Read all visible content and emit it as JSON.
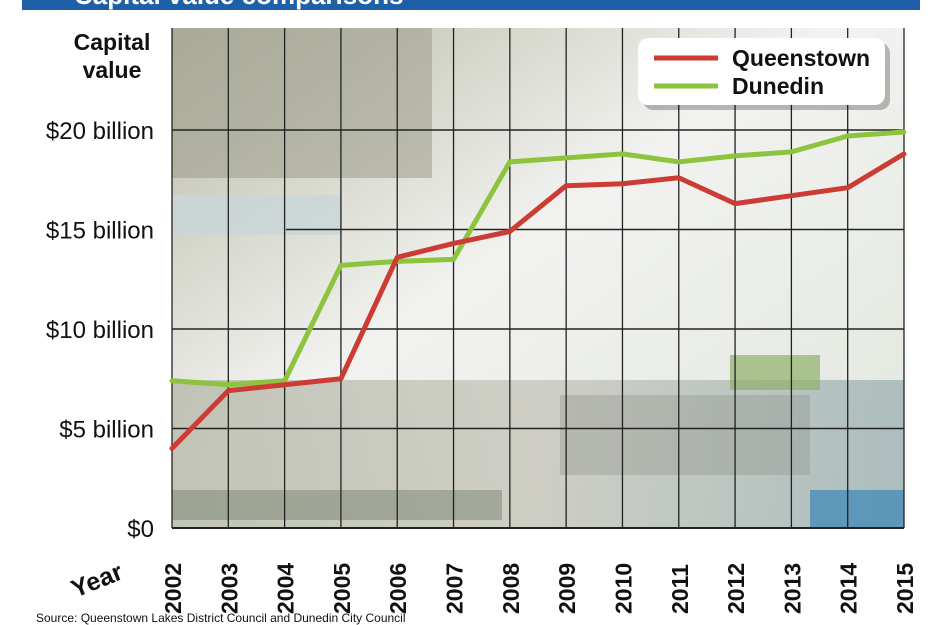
{
  "chart_data": {
    "type": "line",
    "title": "Capital value comparisons",
    "ylabel": "Capital value",
    "xlabel": "Year",
    "categories": [
      "2002",
      "2003",
      "2004",
      "2005",
      "2006",
      "2007",
      "2008",
      "2009",
      "2010",
      "2011",
      "2012",
      "2013",
      "2014",
      "2015"
    ],
    "series": [
      {
        "name": "Queenstown",
        "color": "#cc3b34",
        "values": [
          4.0,
          6.9,
          7.2,
          7.5,
          13.6,
          14.3,
          14.9,
          17.2,
          17.3,
          17.6,
          16.3,
          16.7,
          17.1,
          18.8
        ]
      },
      {
        "name": "Dunedin",
        "color": "#8cc43d",
        "values": [
          7.4,
          7.2,
          7.4,
          13.2,
          13.4,
          13.5,
          18.4,
          18.6,
          18.8,
          18.4,
          18.7,
          18.9,
          19.7,
          19.9
        ]
      }
    ],
    "ylim": [
      0,
      20
    ],
    "yticks": [
      {
        "value": 0,
        "label": "$0"
      },
      {
        "value": 5,
        "label": "$5 billion"
      },
      {
        "value": 10,
        "label": "$10 billion"
      },
      {
        "value": 15,
        "label": "$15 billion"
      },
      {
        "value": 20,
        "label": "$20 billion"
      }
    ],
    "legend_position": "top-right",
    "grid": true
  },
  "source": "Source: Queenstown Lakes District Council and Dunedin City Council",
  "colors": {
    "title_bar": "#1f5fa8",
    "grid": "#222222"
  }
}
